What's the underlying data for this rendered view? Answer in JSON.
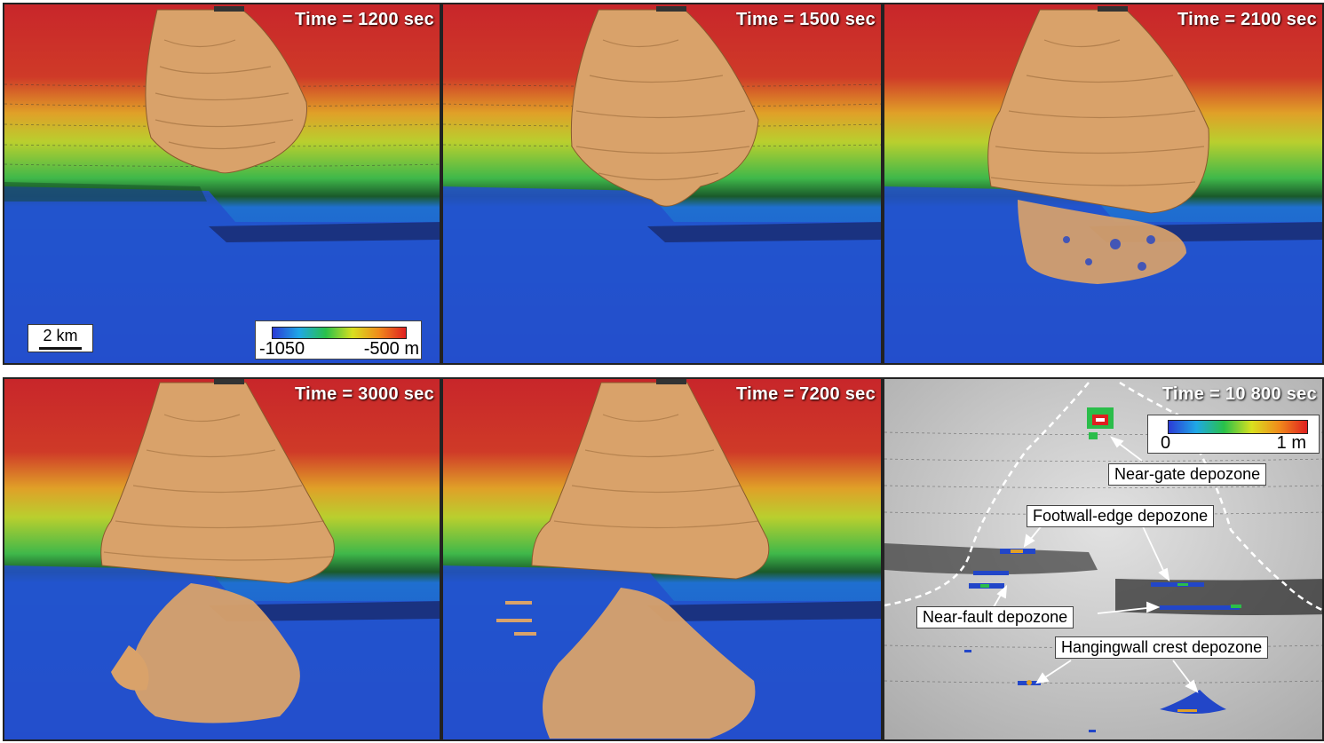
{
  "panels": [
    {
      "time": "Time = 1200 sec",
      "stage": 1
    },
    {
      "time": "Time = 1500 sec",
      "stage": 2
    },
    {
      "time": "Time = 2100 sec",
      "stage": 3
    },
    {
      "time": "Time = 3000 sec",
      "stage": 4
    },
    {
      "time": "Time = 7200 sec",
      "stage": 5
    },
    {
      "time": "Time = 10 800 sec",
      "stage": 6
    }
  ],
  "scale_bar": {
    "label": "2 km"
  },
  "depth_colorbar": {
    "min_label": "-1050",
    "max_label": "-500 m"
  },
  "thickness_colorbar": {
    "min_label": "0",
    "max_label": "1 m"
  },
  "depozones": {
    "near_gate": "Near-gate depozone",
    "footwall_edge": "Footwall-edge depozone",
    "near_fault": "Near-fault depozone",
    "hangingwall_crest": "Hangingwall crest depozone"
  },
  "colors": {
    "flow": "#d9a26a",
    "depth_high": "#c8262a",
    "depth_low": "#2246c8",
    "grey_bg": "#c9c9c9"
  }
}
